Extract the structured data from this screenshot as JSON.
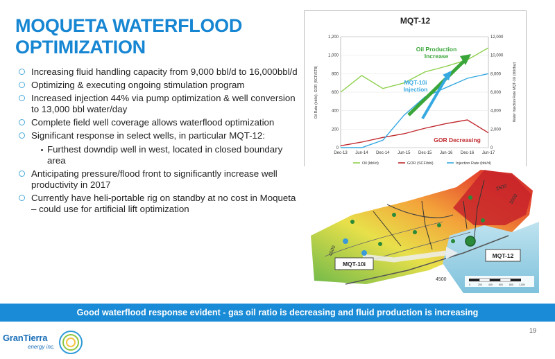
{
  "title": {
    "line1": "MOQUETA WATERFLOOD",
    "line2": "OPTIMIZATION"
  },
  "bullets": [
    "Increasing fluid handling capacity from 9,000 bbl/d to 16,000bbl/d",
    "Optimizing & executing ongoing stimulation program",
    "Increased injection 44% via pump optimization & well conversion to 13,000 bbl water/day",
    "Complete field well coverage allows waterflood optimization",
    "Significant response in select wells, in particular MQT-12:"
  ],
  "sub_bullet": "Furthest downdip well in west, located in closed boundary area",
  "bullets_after": [
    "Anticipating pressure/flood front to significantly increase well productivity in 2017",
    "Currently have heli-portable rig on standby at no cost in Moqueta – could use for artificial lift optimization"
  ],
  "chart": {
    "title": "MQT-12",
    "left_axis_label": "Oil Rate (bbl/d), GOR (SCF/STB)",
    "right_axis_label": "Water Injection Rate MQT-10i (bbl/day)",
    "left_ticks": [
      "1,200",
      "1,000",
      "800",
      "600",
      "400",
      "200",
      "0"
    ],
    "right_ticks": [
      "12,000",
      "10,000",
      "8,000",
      "6,000",
      "4,000",
      "2,000",
      "0"
    ],
    "x_ticks": [
      "Dec-13",
      "Jun-14",
      "Dec-14",
      "Jun-15",
      "Dec-15",
      "Jun-16",
      "Dec-16",
      "Jun-17"
    ],
    "legend": [
      "Oil (bbl/d)",
      "GOR (SCF/bbl)",
      "Injection Rate (bbl/d)"
    ],
    "annotations": {
      "oil": [
        "Oil Production",
        "Increase"
      ],
      "injection": [
        "MQT-10i",
        "Injection"
      ],
      "gor": "GOR Decreasing"
    },
    "colors": {
      "oil": "#8fd14f",
      "gor": "#c0282d",
      "injection": "#36a9e1",
      "annotation_green": "#3aa63a"
    }
  },
  "chart_data": {
    "type": "line",
    "title": "MQT-12",
    "x": [
      "Dec-13",
      "Jun-14",
      "Dec-14",
      "Jun-15",
      "Dec-15",
      "Jun-16",
      "Dec-16",
      "Jun-17"
    ],
    "ylim_left": [
      0,
      1200
    ],
    "ylim_right": [
      0,
      12000
    ],
    "series": [
      {
        "name": "Oil (bbl/d)",
        "axis": "left",
        "values": [
          600,
          780,
          640,
          700,
          820,
          880,
          950,
          1080
        ]
      },
      {
        "name": "GOR (SCF/bbl)",
        "axis": "left",
        "values": [
          20,
          60,
          110,
          150,
          210,
          260,
          300,
          160
        ]
      },
      {
        "name": "Injection Rate (bbl/d)",
        "axis": "right",
        "values": [
          0,
          0,
          800,
          3500,
          5500,
          6500,
          7500,
          8000
        ]
      }
    ]
  },
  "map": {
    "well_labels": [
      "MQT-10i",
      "MQT-12"
    ],
    "contours": [
      "4500",
      "3500",
      "2500",
      "3000",
      "4500",
      "2500"
    ],
    "scale": [
      "0",
      "200",
      "400",
      "600",
      "800",
      "1,000"
    ]
  },
  "banner": "Good waterflood response evident - gas oil ratio is decreasing and fluid production is increasing",
  "page_number": "19",
  "logo": {
    "name": "GranTierra",
    "sub": "energy inc."
  }
}
